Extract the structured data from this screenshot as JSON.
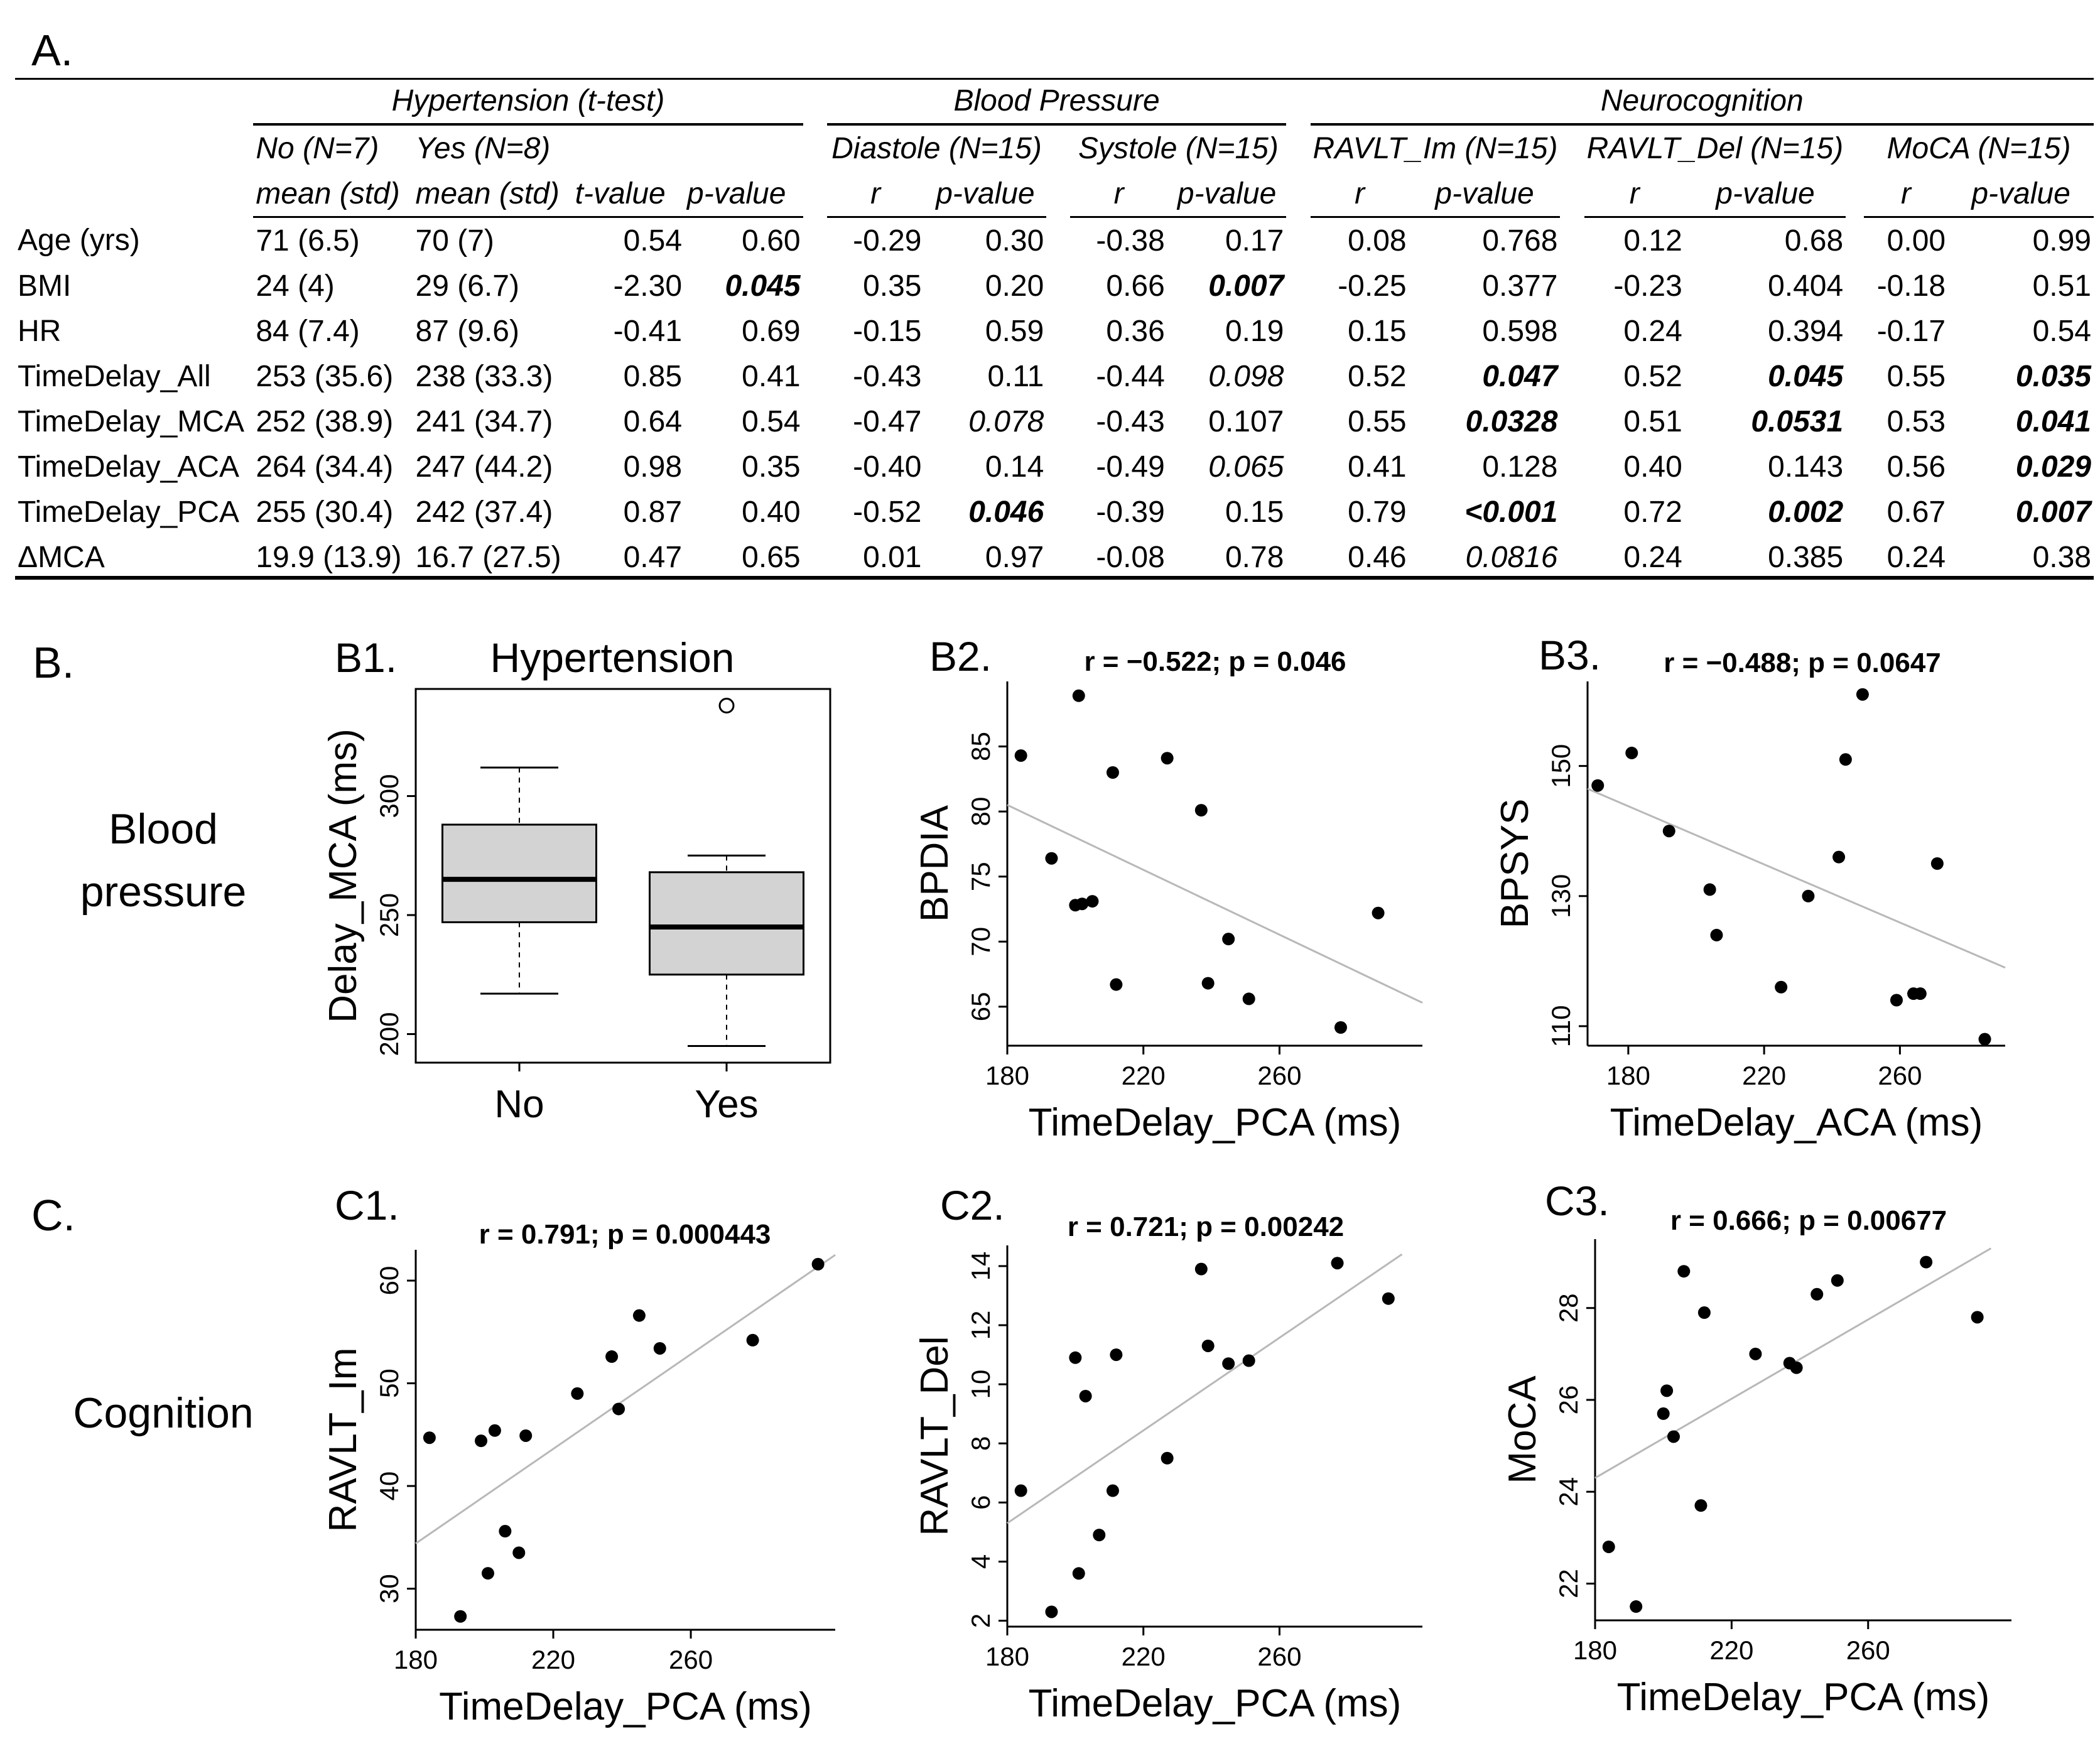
{
  "panel_letters": {
    "a": "A.",
    "b": "B.",
    "c": "C."
  },
  "row_labels": {
    "blood_1": "Blood",
    "blood_2": "pressure",
    "cognition": "Cognition"
  },
  "table": {
    "groups": {
      "hypertension": "Hypertension  (t-test)",
      "blood_pressure": "Blood Pressure",
      "neurocognition": "Neurocognition"
    },
    "subgroups": {
      "no": "No (N=7)",
      "yes": "Yes (N=8)",
      "diastole": "Diastole (N=15)",
      "systole": "Systole (N=15)",
      "ravlt_im": "RAVLT_Im (N=15)",
      "ravlt_del": "RAVLT_Del (N=15)",
      "moca": "MoCA (N=15)"
    },
    "colheads": {
      "mean_std": "mean (std)",
      "t_value": "t-value",
      "p_value": "p-value",
      "r": "r"
    },
    "rows": [
      {
        "label": "Age (yrs)",
        "no": "71 (6.5)",
        "yes": "70 (7)",
        "t": "0.54",
        "p": "0.60",
        "dia_r": "-0.29",
        "dia_p": "0.30",
        "sys_r": "-0.38",
        "sys_p": "0.17",
        "im_r": "0.08",
        "im_p": "0.768",
        "del_r": "0.12",
        "del_p": "0.68",
        "moca_r": "0.00",
        "moca_p": "0.99"
      },
      {
        "label": "BMI",
        "no": "24 (4)",
        "yes": "29 (6.7)",
        "t": "-2.30",
        "p": "0.045",
        "dia_r": "0.35",
        "dia_p": "0.20",
        "sys_r": "0.66",
        "sys_p": "0.007",
        "im_r": "-0.25",
        "im_p": "0.377",
        "del_r": "-0.23",
        "del_p": "0.404",
        "moca_r": "-0.18",
        "moca_p": "0.51"
      },
      {
        "label": "HR",
        "no": "84 (7.4)",
        "yes": "87 (9.6)",
        "t": "-0.41",
        "p": "0.69",
        "dia_r": "-0.15",
        "dia_p": "0.59",
        "sys_r": "0.36",
        "sys_p": "0.19",
        "im_r": "0.15",
        "im_p": "0.598",
        "del_r": "0.24",
        "del_p": "0.394",
        "moca_r": "-0.17",
        "moca_p": "0.54"
      },
      {
        "label": "TimeDelay_All",
        "no": "253 (35.6)",
        "yes": "238 (33.3)",
        "t": "0.85",
        "p": "0.41",
        "dia_r": "-0.43",
        "dia_p": "0.11",
        "sys_r": "-0.44",
        "sys_p": "0.098",
        "im_r": "0.52",
        "im_p": "0.047",
        "del_r": "0.52",
        "del_p": "0.045",
        "moca_r": "0.55",
        "moca_p": "0.035"
      },
      {
        "label": "TimeDelay_MCA",
        "no": "252 (38.9)",
        "yes": "241 (34.7)",
        "t": "0.64",
        "p": "0.54",
        "dia_r": "-0.47",
        "dia_p": "0.078",
        "sys_r": "-0.43",
        "sys_p": "0.107",
        "im_r": "0.55",
        "im_p": "0.0328",
        "del_r": "0.51",
        "del_p": "0.0531",
        "moca_r": "0.53",
        "moca_p": "0.041"
      },
      {
        "label": "TimeDelay_ACA",
        "no": "264 (34.4)",
        "yes": "247 (44.2)",
        "t": "0.98",
        "p": "0.35",
        "dia_r": "-0.40",
        "dia_p": "0.14",
        "sys_r": "-0.49",
        "sys_p": "0.065",
        "im_r": "0.41",
        "im_p": "0.128",
        "del_r": "0.40",
        "del_p": "0.143",
        "moca_r": "0.56",
        "moca_p": "0.029"
      },
      {
        "label": "TimeDelay_PCA",
        "no": "255 (30.4)",
        "yes": "242 (37.4)",
        "t": "0.87",
        "p": "0.40",
        "dia_r": "-0.52",
        "dia_p": "0.046",
        "sys_r": "-0.39",
        "sys_p": "0.15",
        "im_r": "0.79",
        "im_p": "<0.001",
        "del_r": "0.72",
        "del_p": "0.002",
        "moca_r": "0.67",
        "moca_p": "0.007"
      },
      {
        "label": "ΔMCA",
        "no": "19.9 (13.9)",
        "yes": "16.7 (27.5)",
        "t": "0.47",
        "p": "0.65",
        "dia_r": "0.01",
        "dia_p": "0.97",
        "sys_r": "-0.08",
        "sys_p": "0.78",
        "im_r": "0.46",
        "im_p": "0.0816",
        "del_r": "0.24",
        "del_p": "0.385",
        "moca_r": "0.24",
        "moca_p": "0.38"
      }
    ],
    "bold_italic": [
      "1.p",
      "1.sys_p",
      "3.im_p",
      "3.del_p",
      "3.moca_p",
      "4.im_p",
      "4.del_p",
      "4.moca_p",
      "5.moca_p",
      "6.dia_p",
      "6.im_p",
      "6.del_p",
      "6.moca_p"
    ],
    "italic": [
      "3.sys_p",
      "4.dia_p",
      "5.sys_p",
      "7.im_p"
    ]
  },
  "chart_data": [
    {
      "id": "b1",
      "tag": "B1.",
      "type": "box",
      "title": "Hypertension",
      "ylabel": "Delay_MCA (ms)",
      "ylim": [
        188,
        345
      ],
      "yticks": [
        200,
        250,
        300
      ],
      "categories": [
        "No",
        "Yes"
      ],
      "boxes": [
        {
          "name": "No",
          "whisker_low": 217,
          "q1": 247,
          "median": 265,
          "q3": 288,
          "whisker_high": 312
        },
        {
          "name": "Yes",
          "whisker_low": 195,
          "q1": 225,
          "median": 245,
          "q3": 268,
          "whisker_high": 275,
          "outliers": [
            338
          ]
        }
      ]
    },
    {
      "id": "b2",
      "tag": "B2.",
      "type": "scatter",
      "stat": "r = −0.522; p = 0.046",
      "xlabel": "TimeDelay_PCA (ms)",
      "ylabel": "BPDIA",
      "xlim": [
        180,
        302
      ],
      "ylim": [
        62,
        90
      ],
      "xticks": [
        180,
        220,
        260
      ],
      "yticks": [
        65,
        70,
        75,
        80,
        85
      ],
      "x": [
        184,
        193,
        200,
        201,
        202,
        205,
        211,
        212,
        227,
        237,
        239,
        245,
        251,
        278,
        289
      ],
      "y": [
        84.3,
        76.4,
        72.8,
        88.9,
        72.9,
        73.1,
        83.0,
        66.7,
        84.1,
        80.1,
        66.8,
        70.2,
        65.6,
        63.4,
        72.2
      ],
      "fit": [
        [
          180,
          80.5
        ],
        [
          302,
          65.3
        ]
      ]
    },
    {
      "id": "b3",
      "tag": "B3.",
      "type": "scatter",
      "stat": "r = −0.488; p = 0.0647",
      "xlabel": "TimeDelay_ACA (ms)",
      "ylabel": "BPSYS",
      "xlim": [
        168,
        291
      ],
      "ylim": [
        107,
        163
      ],
      "xticks": [
        180,
        220,
        260
      ],
      "yticks": [
        110,
        130,
        150
      ],
      "x": [
        171,
        181,
        192,
        204,
        206,
        225,
        233,
        242,
        244,
        249,
        259,
        264,
        266,
        271,
        285
      ],
      "y": [
        147,
        152,
        140,
        131,
        124,
        116,
        130,
        136,
        151,
        161,
        114,
        115,
        115,
        135,
        108
      ],
      "fit": [
        [
          168,
          146.5
        ],
        [
          291,
          119
        ]
      ]
    },
    {
      "id": "c1",
      "tag": "C1.",
      "type": "scatter",
      "stat": "r = 0.791; p = 0.000443",
      "xlabel": "TimeDelay_PCA (ms)",
      "ylabel": "RAVLT_Im",
      "xlim": [
        180,
        302
      ],
      "ylim": [
        26,
        63
      ],
      "xticks": [
        180,
        220,
        260
      ],
      "yticks": [
        30,
        40,
        50,
        60
      ],
      "x": [
        184,
        193,
        199,
        201,
        203,
        206,
        210,
        212,
        227,
        237,
        239,
        245,
        251,
        278,
        297
      ],
      "y": [
        44.7,
        27.3,
        44.4,
        31.5,
        45.4,
        35.6,
        33.5,
        44.9,
        49.0,
        52.6,
        47.5,
        56.6,
        53.4,
        54.2,
        61.6
      ],
      "fit": [
        [
          180,
          34.4
        ],
        [
          302,
          62.5
        ]
      ]
    },
    {
      "id": "c2",
      "tag": "C2.",
      "type": "scatter",
      "stat": "r = 0.721; p = 0.00242",
      "xlabel": "TimeDelay_PCA (ms)",
      "ylabel": "RAVLT_Del",
      "xlim": [
        180,
        302
      ],
      "ylim": [
        1.8,
        14.7
      ],
      "xticks": [
        180,
        220,
        260
      ],
      "yticks": [
        2,
        4,
        6,
        8,
        10,
        12,
        14
      ],
      "x": [
        184,
        193,
        200,
        201,
        203,
        207,
        211,
        212,
        227,
        237,
        239,
        245,
        251,
        277,
        292
      ],
      "y": [
        6.4,
        2.3,
        10.9,
        3.6,
        9.6,
        4.9,
        6.4,
        11.0,
        7.5,
        13.9,
        11.3,
        10.7,
        10.8,
        14.1,
        12.9
      ],
      "fit": [
        [
          180,
          5.3
        ],
        [
          296,
          14.4
        ]
      ]
    },
    {
      "id": "c3",
      "tag": "C3.",
      "type": "scatter",
      "stat": "r = 0.666; p = 0.00677",
      "xlabel": "TimeDelay_PCA (ms)",
      "ylabel": "MoCA",
      "xlim": [
        180,
        302
      ],
      "ylim": [
        21.2,
        29.5
      ],
      "xticks": [
        180,
        220,
        260
      ],
      "yticks": [
        22,
        24,
        26,
        28
      ],
      "x": [
        184,
        192,
        200,
        201,
        203,
        206,
        211,
        212,
        227,
        237,
        239,
        245,
        251,
        277,
        292
      ],
      "y": [
        22.8,
        21.5,
        25.7,
        26.2,
        25.2,
        28.8,
        23.7,
        27.9,
        27.0,
        26.8,
        26.7,
        28.3,
        28.6,
        29.0,
        27.8
      ],
      "fit": [
        [
          180,
          24.3
        ],
        [
          296,
          29.3
        ]
      ]
    }
  ]
}
